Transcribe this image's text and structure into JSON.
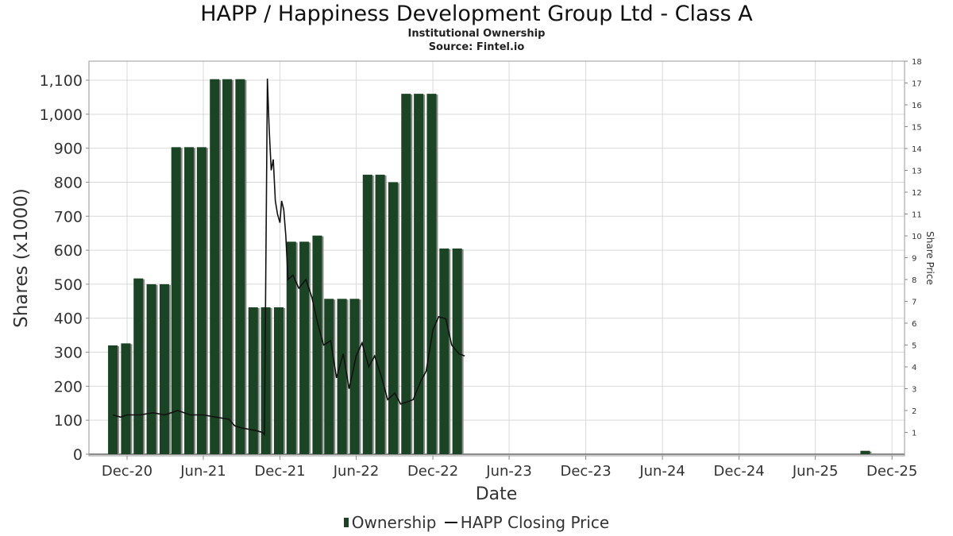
{
  "title": "HAPP / Happiness Development Group Ltd - Class A",
  "subtitle": "Institutional Ownership",
  "source": "Source: Fintel.io",
  "legend": {
    "ownership": "Ownership",
    "price": "HAPP Closing Price"
  },
  "colors": {
    "bar": "#1a4423",
    "bar_shadow": "#8a8a8a",
    "price_line": "#111111",
    "grid": "#d9d9d9"
  },
  "chart_data": {
    "type": "bar",
    "xlabel": "Date",
    "ylabel": "Shares (x1000)",
    "y2label": "Share Price",
    "ylim": [
      0,
      1100
    ],
    "y2lim": [
      0,
      18
    ],
    "xlim": [
      "2020-09-01",
      "2025-12-31"
    ],
    "grid": true,
    "legend_position": "bottom",
    "x_ticks": [
      {
        "date": "2020-12-01",
        "label": "Dec-20"
      },
      {
        "date": "2021-06-01",
        "label": "Jun-21"
      },
      {
        "date": "2021-12-01",
        "label": "Dec-21"
      },
      {
        "date": "2022-06-01",
        "label": "Jun-22"
      },
      {
        "date": "2022-12-01",
        "label": "Dec-22"
      },
      {
        "date": "2023-06-01",
        "label": "Jun-23"
      },
      {
        "date": "2023-12-01",
        "label": "Dec-23"
      },
      {
        "date": "2024-06-01",
        "label": "Jun-24"
      },
      {
        "date": "2024-12-01",
        "label": "Dec-24"
      },
      {
        "date": "2025-06-01",
        "label": "Jun-25"
      },
      {
        "date": "2025-12-01",
        "label": "Dec-25"
      }
    ],
    "y_ticks": [
      {
        "value": 0,
        "label": "0"
      },
      {
        "value": 100,
        "label": "100"
      },
      {
        "value": 200,
        "label": "200"
      },
      {
        "value": 300,
        "label": "300"
      },
      {
        "value": 400,
        "label": "400"
      },
      {
        "value": 500,
        "label": "500"
      },
      {
        "value": 600,
        "label": "600"
      },
      {
        "value": 700,
        "label": "700"
      },
      {
        "value": 800,
        "label": "800"
      },
      {
        "value": 900,
        "label": "900"
      },
      {
        "value": 1000,
        "label": "1,000"
      },
      {
        "value": 1100,
        "label": "1,100"
      }
    ],
    "y2_ticks": [
      {
        "value": 1,
        "label": "1"
      },
      {
        "value": 2,
        "label": "2"
      },
      {
        "value": 3,
        "label": "3"
      },
      {
        "value": 4,
        "label": "4"
      },
      {
        "value": 5,
        "label": "5"
      },
      {
        "value": 6,
        "label": "6"
      },
      {
        "value": 7,
        "label": "7"
      },
      {
        "value": 8,
        "label": "8"
      },
      {
        "value": 9,
        "label": "9"
      },
      {
        "value": 10,
        "label": "10"
      },
      {
        "value": 11,
        "label": "11"
      },
      {
        "value": 12,
        "label": "12"
      },
      {
        "value": 13,
        "label": "13"
      },
      {
        "value": 14,
        "label": "14"
      },
      {
        "value": 15,
        "label": "15"
      },
      {
        "value": 16,
        "label": "16"
      },
      {
        "value": 17,
        "label": "17"
      },
      {
        "value": 18,
        "label": "18"
      }
    ],
    "series": [
      {
        "name": "Ownership",
        "kind": "bar",
        "x": [
          "2020-10-28",
          "2020-11-28",
          "2020-12-28",
          "2021-01-28",
          "2021-02-28",
          "2021-03-28",
          "2021-04-28",
          "2021-05-28",
          "2021-06-28",
          "2021-07-28",
          "2021-08-28",
          "2021-09-28",
          "2021-10-28",
          "2021-11-28",
          "2021-12-28",
          "2022-01-28",
          "2022-02-28",
          "2022-03-28",
          "2022-04-28",
          "2022-05-28",
          "2022-06-28",
          "2022-07-28",
          "2022-08-28",
          "2022-09-28",
          "2022-10-28",
          "2022-11-28",
          "2022-12-28",
          "2023-01-28",
          "2025-09-28"
        ],
        "values": [
          320,
          326,
          517,
          500,
          500,
          903,
          903,
          903,
          1103,
          1103,
          1103,
          432,
          432,
          432,
          625,
          625,
          643,
          457,
          457,
          457,
          822,
          822,
          800,
          1060,
          1060,
          1060,
          605,
          605,
          10
        ]
      },
      {
        "name": "HAPP Closing Price",
        "kind": "line",
        "axis": "y2",
        "x": [
          "2020-10-28",
          "2020-11-15",
          "2020-12-01",
          "2021-01-01",
          "2021-02-01",
          "2021-03-01",
          "2021-04-01",
          "2021-05-01",
          "2021-06-01",
          "2021-07-01",
          "2021-08-01",
          "2021-08-15",
          "2021-09-01",
          "2021-10-01",
          "2021-10-20",
          "2021-10-25",
          "2021-11-01",
          "2021-11-05",
          "2021-11-10",
          "2021-11-15",
          "2021-11-20",
          "2021-11-25",
          "2021-12-01",
          "2021-12-05",
          "2021-12-10",
          "2021-12-15",
          "2021-12-20",
          "2022-01-01",
          "2022-01-15",
          "2022-02-01",
          "2022-02-15",
          "2022-03-01",
          "2022-03-15",
          "2022-04-01",
          "2022-04-15",
          "2022-05-01",
          "2022-05-15",
          "2022-06-01",
          "2022-06-15",
          "2022-07-01",
          "2022-07-15",
          "2022-08-01",
          "2022-08-15",
          "2022-09-01",
          "2022-09-15",
          "2022-10-01",
          "2022-10-15",
          "2022-11-01",
          "2022-11-15",
          "2022-12-01",
          "2022-12-15",
          "2023-01-01",
          "2023-01-15",
          "2023-02-01",
          "2023-02-15"
        ],
        "values": [
          1.8,
          1.7,
          1.8,
          1.8,
          1.9,
          1.8,
          2.0,
          1.8,
          1.8,
          1.7,
          1.6,
          1.3,
          1.2,
          1.1,
          1.0,
          0.9,
          17.2,
          15.0,
          13.0,
          13.5,
          11.6,
          11.0,
          10.6,
          11.6,
          11.2,
          10.0,
          8.0,
          8.2,
          7.6,
          8.0,
          7.2,
          6.0,
          5.0,
          5.2,
          3.5,
          4.6,
          3.0,
          4.5,
          5.1,
          4.0,
          4.5,
          3.5,
          2.5,
          2.8,
          2.3,
          2.4,
          2.5,
          3.3,
          3.8,
          5.7,
          6.3,
          6.2,
          5.0,
          4.6,
          4.5
        ]
      }
    ]
  }
}
